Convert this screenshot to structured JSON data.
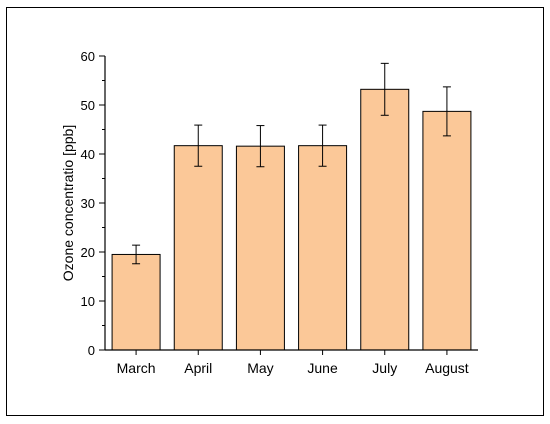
{
  "chart_data": {
    "type": "bar",
    "title": "",
    "xlabel": "",
    "ylabel": "Ozone concentratio [ppb]",
    "categories": [
      "March",
      "April",
      "May",
      "June",
      "July",
      "August"
    ],
    "values": [
      19.5,
      41.7,
      41.6,
      41.7,
      53.2,
      48.7
    ],
    "error_bars": [
      1.9,
      4.2,
      4.2,
      4.2,
      5.3,
      5.0
    ],
    "ylim": [
      0,
      60
    ],
    "yticks": [
      0,
      10,
      20,
      30,
      40,
      50,
      60
    ],
    "grid": false,
    "legend": "none",
    "colors": {
      "bar_fill": "#FBC898",
      "bar_stroke": "#000000",
      "axis": "#000000"
    }
  }
}
